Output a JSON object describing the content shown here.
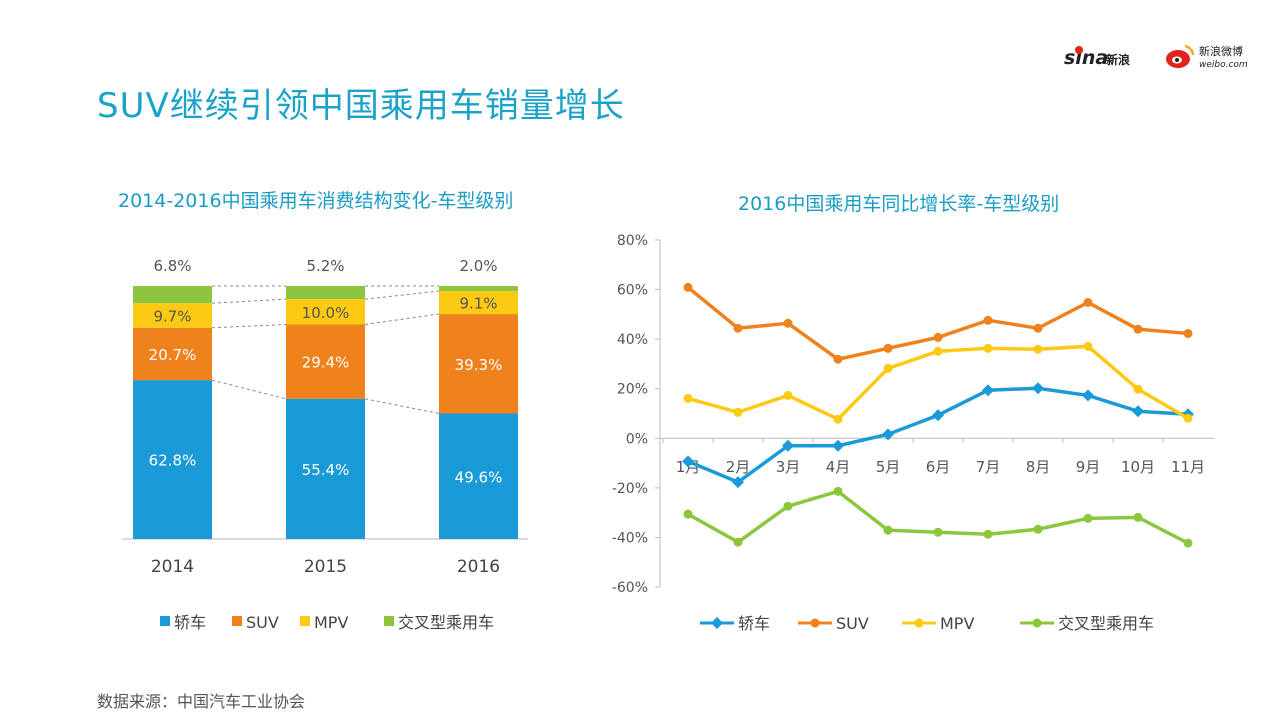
{
  "title": "SUV继续引领中国乘用车销量增长",
  "source": "数据来源：中国汽车工业协会",
  "logos": {
    "sina": "sina新浪",
    "weibo": "新浪微博",
    "weibo_url": "weibo.com"
  },
  "colors": {
    "sedan": "#1a9bd7",
    "suv": "#f0821e",
    "mpv": "#fcc913",
    "crossover": "#8cc63e",
    "title": "#1aa3c9"
  },
  "chart_data": [
    {
      "type": "bar",
      "stacked": true,
      "title": "2014-2016中国乘用车消费结构变化-车型级别",
      "categories": [
        "2014",
        "2015",
        "2016"
      ],
      "series": [
        {
          "name": "轿车",
          "values": [
            62.8,
            55.4,
            49.6
          ],
          "labels": [
            "62.8%",
            "55.4%",
            "49.6%"
          ]
        },
        {
          "name": "SUV",
          "values": [
            20.7,
            29.4,
            39.3
          ],
          "labels": [
            "20.7%",
            "29.4%",
            "39.3%"
          ]
        },
        {
          "name": "MPV",
          "values": [
            9.7,
            10.0,
            9.1
          ],
          "labels": [
            "9.7%",
            "10.0%",
            "9.1%"
          ]
        },
        {
          "name": "交叉型乘用车",
          "values": [
            6.8,
            5.2,
            2.0
          ],
          "labels": [
            "6.8%",
            "5.2%",
            "2.0%"
          ]
        }
      ],
      "ylim": [
        0,
        100
      ],
      "legend": "bottom"
    },
    {
      "type": "line",
      "title": "2016中国乘用车同比增长率-车型级别",
      "categories": [
        "1月",
        "2月",
        "3月",
        "4月",
        "5月",
        "6月",
        "7月",
        "8月",
        "9月",
        "10月",
        "11月"
      ],
      "yticks": [
        "80%",
        "60%",
        "40%",
        "20%",
        "0%",
        "-20%",
        "-40%",
        "-60%"
      ],
      "ylim": [
        -60,
        80
      ],
      "series": [
        {
          "name": "轿车",
          "marker": "diamond",
          "values": [
            -9.3,
            -17.7,
            -3.0,
            -3.0,
            1.6,
            9.3,
            19.4,
            20.2,
            17.3,
            10.9,
            9.7
          ]
        },
        {
          "name": "SUV",
          "marker": "circle",
          "values": [
            60.9,
            44.4,
            46.4,
            31.9,
            36.3,
            40.7,
            47.6,
            44.4,
            54.8,
            44.0,
            42.3
          ]
        },
        {
          "name": "MPV",
          "marker": "circle",
          "values": [
            16.1,
            10.5,
            17.3,
            7.7,
            28.2,
            35.1,
            36.3,
            35.9,
            37.1,
            19.8,
            8.1
          ]
        },
        {
          "name": "交叉型乘用车",
          "marker": "circle",
          "values": [
            -30.6,
            -41.9,
            -27.4,
            -21.4,
            -37.1,
            -37.9,
            -38.7,
            -36.7,
            -32.3,
            -31.9,
            -42.3
          ]
        }
      ],
      "legend": "bottom"
    }
  ]
}
